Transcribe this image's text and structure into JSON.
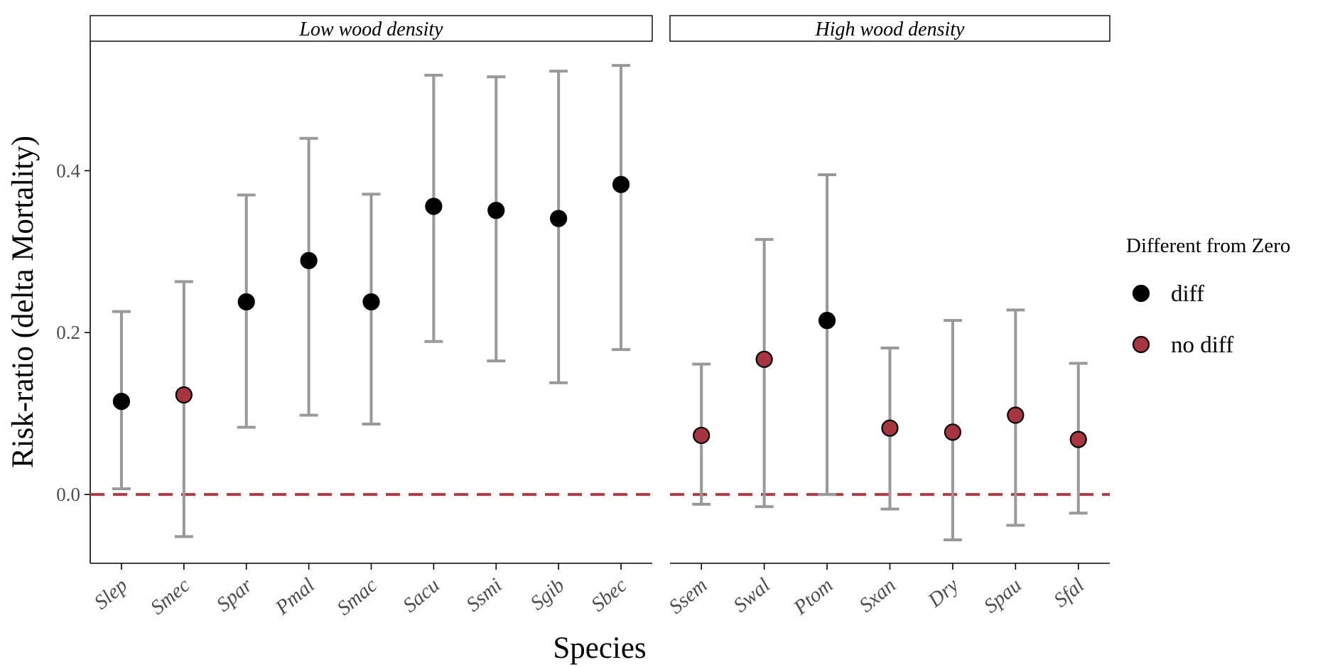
{
  "chart_data": {
    "type": "scatter",
    "xlabel": "Species",
    "ylabel": "Risk-ratio (delta Mortality)",
    "ylim": [
      -0.085,
      0.56
    ],
    "yticks": [
      0.0,
      0.2,
      0.4
    ],
    "ytick_labels": [
      "0.0",
      "0.2",
      "0.4"
    ],
    "reference_line": {
      "y": 0,
      "style": "dashed",
      "color": "#B03A46"
    },
    "legend": {
      "title": "Different from Zero",
      "placement": "right",
      "entries": [
        {
          "label": "diff",
          "color": "#000000"
        },
        {
          "label": "no diff",
          "color": "#A8343F"
        }
      ]
    },
    "errorbar_color": "#999999",
    "panels": [
      {
        "title": "Low wood density",
        "points": [
          {
            "species": "Slep",
            "estimate": 0.115,
            "lower": 0.007,
            "upper": 0.226,
            "group": "diff"
          },
          {
            "species": "Smec",
            "estimate": 0.123,
            "lower": -0.052,
            "upper": 0.263,
            "group": "no diff"
          },
          {
            "species": "Spar",
            "estimate": 0.238,
            "lower": 0.083,
            "upper": 0.37,
            "group": "diff"
          },
          {
            "species": "Pmal",
            "estimate": 0.289,
            "lower": 0.098,
            "upper": 0.44,
            "group": "diff"
          },
          {
            "species": "Smac",
            "estimate": 0.238,
            "lower": 0.087,
            "upper": 0.371,
            "group": "diff"
          },
          {
            "species": "Sacu",
            "estimate": 0.356,
            "lower": 0.189,
            "upper": 0.518,
            "group": "diff"
          },
          {
            "species": "Ssmi",
            "estimate": 0.351,
            "lower": 0.165,
            "upper": 0.516,
            "group": "diff"
          },
          {
            "species": "Sgib",
            "estimate": 0.341,
            "lower": 0.138,
            "upper": 0.523,
            "group": "diff"
          },
          {
            "species": "Sbec",
            "estimate": 0.383,
            "lower": 0.179,
            "upper": 0.53,
            "group": "diff"
          }
        ]
      },
      {
        "title": "High wood density",
        "points": [
          {
            "species": "Ssem",
            "estimate": 0.073,
            "lower": -0.012,
            "upper": 0.161,
            "group": "no diff"
          },
          {
            "species": "Swal",
            "estimate": 0.167,
            "lower": -0.015,
            "upper": 0.315,
            "group": "no diff"
          },
          {
            "species": "Ptom",
            "estimate": 0.215,
            "lower": 0.0,
            "upper": 0.395,
            "group": "diff"
          },
          {
            "species": "Sxan",
            "estimate": 0.082,
            "lower": -0.018,
            "upper": 0.181,
            "group": "no diff"
          },
          {
            "species": "Dry",
            "estimate": 0.077,
            "lower": -0.056,
            "upper": 0.215,
            "group": "no diff"
          },
          {
            "species": "Spau",
            "estimate": 0.098,
            "lower": -0.038,
            "upper": 0.228,
            "group": "no diff"
          },
          {
            "species": "Sfal",
            "estimate": 0.068,
            "lower": -0.023,
            "upper": 0.162,
            "group": "no diff"
          }
        ]
      }
    ]
  }
}
